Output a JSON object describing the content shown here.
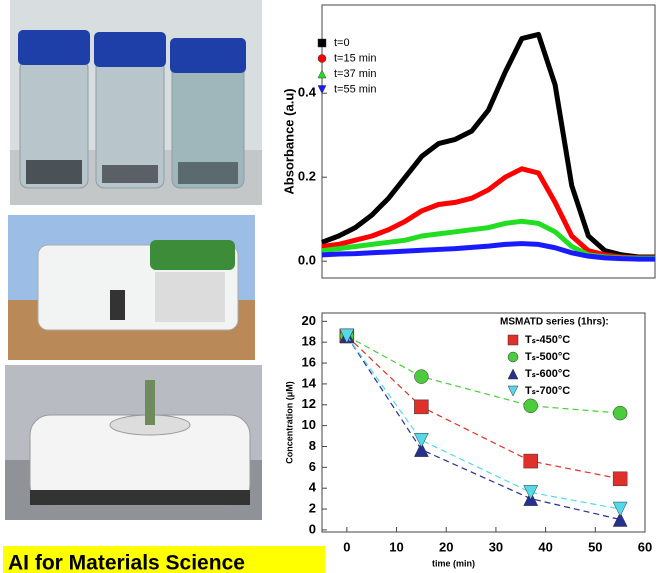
{
  "chart_data": [
    {
      "type": "line",
      "y_label": "Absorbance (a.u)",
      "x": [
        0,
        5,
        10,
        15,
        20,
        25,
        30,
        35,
        40,
        45,
        50,
        55,
        60,
        65,
        70,
        75,
        80,
        85,
        90,
        95,
        100
      ],
      "xlim": [
        0,
        100
      ],
      "ylim": [
        -0.04,
        0.61
      ],
      "yticks": [
        {
          "value": 0.0,
          "label": "0.0"
        },
        {
          "value": 0.2,
          "label": "0.2"
        },
        {
          "value": 0.4,
          "label": "0.4"
        }
      ],
      "series": [
        {
          "name": "t=0",
          "color": "#000000",
          "marker": "square",
          "values": [
            0.045,
            0.06,
            0.08,
            0.11,
            0.15,
            0.2,
            0.25,
            0.28,
            0.29,
            0.31,
            0.36,
            0.45,
            0.53,
            0.54,
            0.42,
            0.18,
            0.06,
            0.025,
            0.015,
            0.01,
            0.01
          ]
        },
        {
          "name": "t=15 min",
          "color": "#ff0000",
          "marker": "circle",
          "values": [
            0.035,
            0.04,
            0.05,
            0.06,
            0.075,
            0.095,
            0.12,
            0.135,
            0.14,
            0.15,
            0.17,
            0.2,
            0.22,
            0.21,
            0.14,
            0.06,
            0.025,
            0.015,
            0.01,
            0.008,
            0.008
          ]
        },
        {
          "name": "t=37 min",
          "color": "#22dd22",
          "marker": "triangle",
          "values": [
            0.025,
            0.03,
            0.035,
            0.04,
            0.045,
            0.05,
            0.06,
            0.065,
            0.07,
            0.075,
            0.08,
            0.09,
            0.095,
            0.09,
            0.07,
            0.035,
            0.015,
            0.01,
            0.008,
            0.007,
            0.007
          ]
        },
        {
          "name": "t=55 min",
          "color": "#1a1aff",
          "marker": "down-triangle",
          "values": [
            0.015,
            0.017,
            0.018,
            0.02,
            0.022,
            0.024,
            0.026,
            0.028,
            0.03,
            0.033,
            0.036,
            0.04,
            0.042,
            0.04,
            0.032,
            0.02,
            0.012,
            0.008,
            0.006,
            0.005,
            0.005
          ]
        }
      ]
    },
    {
      "type": "scatter",
      "x_label": "time (min)",
      "y_label": "Concentration (μM)",
      "legend_title": "MSMATD series (1hrs):",
      "x": [
        0,
        15,
        37,
        55
      ],
      "xlim": [
        -5,
        60
      ],
      "ylim": [
        -0.2,
        20.8
      ],
      "xticks": [
        0,
        10,
        20,
        30,
        40,
        50,
        60
      ],
      "yticks": [
        0,
        2,
        4,
        6,
        8,
        10,
        12,
        14,
        16,
        18,
        20
      ],
      "series": [
        {
          "name": "Tₛ-450°C",
          "color": "#e0302a",
          "marker": "square",
          "values": [
            18.6,
            11.8,
            6.6,
            4.9
          ]
        },
        {
          "name": "Tₛ-500°C",
          "color": "#4ccc3c",
          "marker": "circle",
          "values": [
            18.6,
            14.7,
            11.9,
            11.2
          ]
        },
        {
          "name": "Tₛ-600°C",
          "color": "#26308f",
          "marker": "triangle",
          "values": [
            18.6,
            7.7,
            3.0,
            1.0
          ]
        },
        {
          "name": "Tₛ-700°C",
          "color": "#55d8ea",
          "marker": "down-triangle",
          "values": [
            18.6,
            8.6,
            3.6,
            2.0
          ]
        }
      ]
    }
  ],
  "caption": "AI for Materials Science"
}
